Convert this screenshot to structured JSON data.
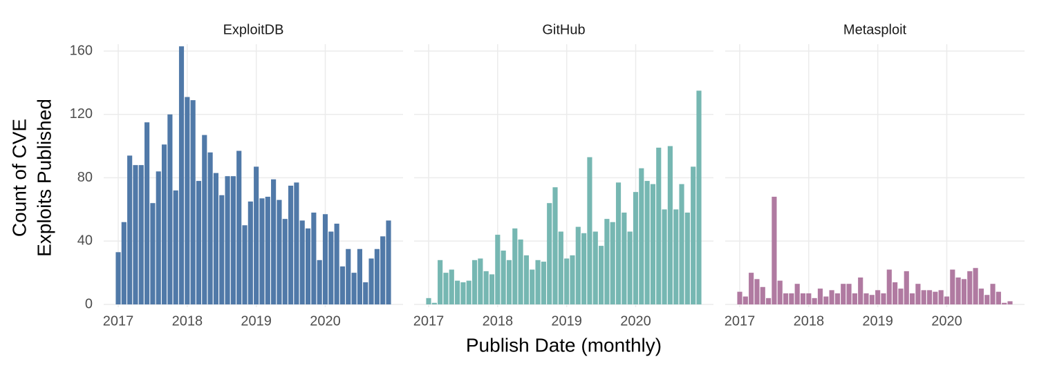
{
  "chart_data": [
    {
      "type": "bar",
      "title": "ExploitDB",
      "ylabel": [
        "Count of CVE",
        "Exploits Published"
      ],
      "color": "#5079a8",
      "x": [
        "2017-01",
        "2017-02",
        "2017-03",
        "2017-04",
        "2017-05",
        "2017-06",
        "2017-07",
        "2017-08",
        "2017-09",
        "2017-10",
        "2017-11",
        "2017-12",
        "2018-01",
        "2018-02",
        "2018-03",
        "2018-04",
        "2018-05",
        "2018-06",
        "2018-07",
        "2018-08",
        "2018-09",
        "2018-10",
        "2018-11",
        "2018-12",
        "2019-01",
        "2019-02",
        "2019-03",
        "2019-04",
        "2019-05",
        "2019-06",
        "2019-07",
        "2019-08",
        "2019-09",
        "2019-10",
        "2019-11",
        "2019-12",
        "2020-01",
        "2020-02",
        "2020-03",
        "2020-04",
        "2020-05",
        "2020-06",
        "2020-07",
        "2020-08",
        "2020-09",
        "2020-10",
        "2020-11",
        "2020-12"
      ],
      "values": [
        33,
        52,
        94,
        88,
        88,
        115,
        64,
        84,
        101,
        120,
        72,
        163,
        131,
        129,
        78,
        107,
        96,
        83,
        69,
        81,
        81,
        97,
        50,
        65,
        87,
        67,
        68,
        79,
        66,
        54,
        75,
        77,
        53,
        48,
        58,
        28,
        57,
        46,
        51,
        24,
        35,
        20,
        35,
        14,
        29,
        35,
        43,
        53
      ],
      "ylim": [
        0,
        160
      ],
      "yticks": [
        0,
        40,
        80,
        120,
        160
      ],
      "xticks": [
        {
          "value": "2017-01",
          "label": "2017"
        },
        {
          "value": "2018-01",
          "label": "2018"
        },
        {
          "value": "2019-01",
          "label": "2019"
        },
        {
          "value": "2020-01",
          "label": "2020"
        }
      ],
      "grid": true
    },
    {
      "type": "bar",
      "title": "GitHub",
      "xlabel": "Publish Date (monthly)",
      "color": "#76b7b2",
      "x": [
        "2017-01",
        "2017-02",
        "2017-03",
        "2017-04",
        "2017-05",
        "2017-06",
        "2017-07",
        "2017-08",
        "2017-09",
        "2017-10",
        "2017-11",
        "2017-12",
        "2018-01",
        "2018-02",
        "2018-03",
        "2018-04",
        "2018-05",
        "2018-06",
        "2018-07",
        "2018-08",
        "2018-09",
        "2018-10",
        "2018-11",
        "2018-12",
        "2019-01",
        "2019-02",
        "2019-03",
        "2019-04",
        "2019-05",
        "2019-06",
        "2019-07",
        "2019-08",
        "2019-09",
        "2019-10",
        "2019-11",
        "2019-12",
        "2020-01",
        "2020-02",
        "2020-03",
        "2020-04",
        "2020-05",
        "2020-06",
        "2020-07",
        "2020-08",
        "2020-09",
        "2020-10",
        "2020-11",
        "2020-12"
      ],
      "values": [
        4,
        1,
        28,
        20,
        22,
        15,
        14,
        15,
        28,
        29,
        21,
        19,
        44,
        34,
        28,
        48,
        41,
        31,
        22,
        28,
        27,
        64,
        74,
        46,
        29,
        31,
        49,
        45,
        93,
        46,
        37,
        54,
        52,
        77,
        58,
        46,
        71,
        86,
        78,
        76,
        99,
        60,
        100,
        60,
        76,
        58,
        87,
        135
      ],
      "ylim": [
        0,
        160
      ],
      "yticks": [
        0,
        40,
        80,
        120,
        160
      ],
      "xticks": [
        {
          "value": "2017-01",
          "label": "2017"
        },
        {
          "value": "2018-01",
          "label": "2018"
        },
        {
          "value": "2019-01",
          "label": "2019"
        },
        {
          "value": "2020-01",
          "label": "2020"
        }
      ],
      "grid": true
    },
    {
      "type": "bar",
      "title": "Metasploit",
      "color": "#b07aa1",
      "x": [
        "2017-01",
        "2017-02",
        "2017-03",
        "2017-04",
        "2017-05",
        "2017-06",
        "2017-07",
        "2017-08",
        "2017-09",
        "2017-10",
        "2017-11",
        "2017-12",
        "2018-01",
        "2018-02",
        "2018-03",
        "2018-04",
        "2018-05",
        "2018-06",
        "2018-07",
        "2018-08",
        "2018-09",
        "2018-10",
        "2018-11",
        "2018-12",
        "2019-01",
        "2019-02",
        "2019-03",
        "2019-04",
        "2019-05",
        "2019-06",
        "2019-07",
        "2019-08",
        "2019-09",
        "2019-10",
        "2019-11",
        "2019-12",
        "2020-01",
        "2020-02",
        "2020-03",
        "2020-04",
        "2020-05",
        "2020-06",
        "2020-07",
        "2020-08",
        "2020-09",
        "2020-10",
        "2020-11",
        "2020-12"
      ],
      "values": [
        8,
        5,
        20,
        16,
        11,
        4,
        68,
        15,
        7,
        7,
        13,
        7,
        7,
        4,
        10,
        5,
        9,
        7,
        13,
        13,
        7,
        17,
        7,
        6,
        9,
        7,
        22,
        14,
        10,
        21,
        7,
        13,
        9,
        9,
        8,
        9,
        5,
        22,
        17,
        16,
        21,
        23,
        10,
        6,
        13,
        8,
        1,
        2
      ],
      "ylim": [
        0,
        160
      ],
      "yticks": [
        0,
        40,
        80,
        120,
        160
      ],
      "xticks": [
        {
          "value": "2017-01",
          "label": "2017"
        },
        {
          "value": "2018-01",
          "label": "2018"
        },
        {
          "value": "2019-01",
          "label": "2019"
        },
        {
          "value": "2020-01",
          "label": "2020"
        }
      ],
      "grid": true
    }
  ]
}
